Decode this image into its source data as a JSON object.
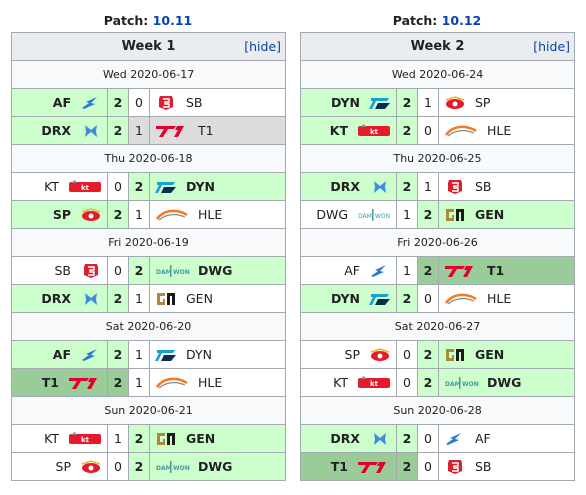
{
  "colors": {
    "win": "#ccffcc",
    "dark_win": "#99cc99",
    "loss": "#dddddd",
    "link": "#0645ad",
    "header": "#eaecf0"
  },
  "weeks": [
    {
      "patch_label": "Patch: ",
      "patch_version": "10.11",
      "title": "Week 1",
      "hide": "hide",
      "days": [
        {
          "date": "Wed 2020-06-17",
          "matches": [
            {
              "team1": "AF",
              "logo1": "af-logo",
              "s1": "2",
              "s2": "0",
              "team2": "SB",
              "logo2": "sb-logo",
              "winner": 1,
              "dark": false,
              "loser_gray": false
            },
            {
              "team1": "DRX",
              "logo1": "drx-logo",
              "s1": "2",
              "s2": "1",
              "team2": "T1",
              "logo2": "t1-logo",
              "winner": 1,
              "dark": false,
              "loser_gray": true
            }
          ]
        },
        {
          "date": "Thu 2020-06-18",
          "matches": [
            {
              "team1": "KT",
              "logo1": "kt-logo",
              "s1": "0",
              "s2": "2",
              "team2": "DYN",
              "logo2": "dyn-logo",
              "winner": 2,
              "dark": false,
              "loser_gray": false
            },
            {
              "team1": "SP",
              "logo1": "sp-logo",
              "s1": "2",
              "s2": "1",
              "team2": "HLE",
              "logo2": "hle-logo",
              "winner": 1,
              "dark": false,
              "loser_gray": false
            }
          ]
        },
        {
          "date": "Fri 2020-06-19",
          "matches": [
            {
              "team1": "SB",
              "logo1": "sb-logo",
              "s1": "0",
              "s2": "2",
              "team2": "DWG",
              "logo2": "dwg-logo",
              "winner": 2,
              "dark": false,
              "loser_gray": false
            },
            {
              "team1": "DRX",
              "logo1": "drx-logo",
              "s1": "2",
              "s2": "1",
              "team2": "GEN",
              "logo2": "gen-logo",
              "winner": 1,
              "dark": false,
              "loser_gray": false
            }
          ]
        },
        {
          "date": "Sat 2020-06-20",
          "matches": [
            {
              "team1": "AF",
              "logo1": "af-logo",
              "s1": "2",
              "s2": "1",
              "team2": "DYN",
              "logo2": "dyn-logo",
              "winner": 1,
              "dark": false,
              "loser_gray": false
            },
            {
              "team1": "T1",
              "logo1": "t1-logo",
              "s1": "2",
              "s2": "1",
              "team2": "HLE",
              "logo2": "hle-logo",
              "winner": 1,
              "dark": true,
              "loser_gray": false
            }
          ]
        },
        {
          "date": "Sun 2020-06-21",
          "matches": [
            {
              "team1": "KT",
              "logo1": "kt-logo",
              "s1": "1",
              "s2": "2",
              "team2": "GEN",
              "logo2": "gen-logo",
              "winner": 2,
              "dark": false,
              "loser_gray": false
            },
            {
              "team1": "SP",
              "logo1": "sp-logo",
              "s1": "0",
              "s2": "2",
              "team2": "DWG",
              "logo2": "dwg-logo",
              "winner": 2,
              "dark": false,
              "loser_gray": false
            }
          ]
        }
      ]
    },
    {
      "patch_label": "Patch: ",
      "patch_version": "10.12",
      "title": "Week 2",
      "hide": "hide",
      "days": [
        {
          "date": "Wed 2020-06-24",
          "matches": [
            {
              "team1": "DYN",
              "logo1": "dyn-logo",
              "s1": "2",
              "s2": "1",
              "team2": "SP",
              "logo2": "sp-logo",
              "winner": 1,
              "dark": false,
              "loser_gray": false
            },
            {
              "team1": "KT",
              "logo1": "kt-logo",
              "s1": "2",
              "s2": "0",
              "team2": "HLE",
              "logo2": "hle-logo",
              "winner": 1,
              "dark": false,
              "loser_gray": false
            }
          ]
        },
        {
          "date": "Thu 2020-06-25",
          "matches": [
            {
              "team1": "DRX",
              "logo1": "drx-logo",
              "s1": "2",
              "s2": "1",
              "team2": "SB",
              "logo2": "sb-logo",
              "winner": 1,
              "dark": false,
              "loser_gray": false
            },
            {
              "team1": "DWG",
              "logo1": "dwg-logo",
              "s1": "1",
              "s2": "2",
              "team2": "GEN",
              "logo2": "gen-logo",
              "winner": 2,
              "dark": false,
              "loser_gray": false
            }
          ]
        },
        {
          "date": "Fri 2020-06-26",
          "matches": [
            {
              "team1": "AF",
              "logo1": "af-logo",
              "s1": "1",
              "s2": "2",
              "team2": "T1",
              "logo2": "t1-logo",
              "winner": 2,
              "dark": true,
              "loser_gray": false
            },
            {
              "team1": "DYN",
              "logo1": "dyn-logo",
              "s1": "2",
              "s2": "0",
              "team2": "HLE",
              "logo2": "hle-logo",
              "winner": 1,
              "dark": false,
              "loser_gray": false
            }
          ]
        },
        {
          "date": "Sat 2020-06-27",
          "matches": [
            {
              "team1": "SP",
              "logo1": "sp-logo",
              "s1": "0",
              "s2": "2",
              "team2": "GEN",
              "logo2": "gen-logo",
              "winner": 2,
              "dark": false,
              "loser_gray": false
            },
            {
              "team1": "KT",
              "logo1": "kt-logo",
              "s1": "0",
              "s2": "2",
              "team2": "DWG",
              "logo2": "dwg-logo",
              "winner": 2,
              "dark": false,
              "loser_gray": false
            }
          ]
        },
        {
          "date": "Sun 2020-06-28",
          "matches": [
            {
              "team1": "DRX",
              "logo1": "drx-logo",
              "s1": "2",
              "s2": "0",
              "team2": "AF",
              "logo2": "af-logo",
              "winner": 1,
              "dark": false,
              "loser_gray": false
            },
            {
              "team1": "T1",
              "logo1": "t1-logo",
              "s1": "2",
              "s2": "0",
              "team2": "SB",
              "logo2": "sb-logo",
              "winner": 1,
              "dark": true,
              "loser_gray": false
            }
          ]
        }
      ]
    }
  ]
}
